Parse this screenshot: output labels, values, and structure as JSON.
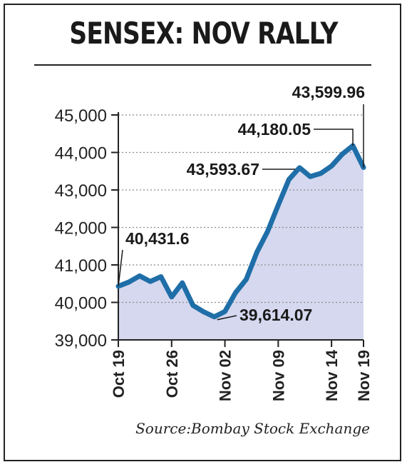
{
  "title": "SENSEX: NOV RALLY",
  "source": "Source:Bombay Stock Exchange",
  "colors": {
    "line": "#1f6ea8",
    "fill": "#d5d8ef",
    "text": "#1a1a1a",
    "grid": "#8a8a8a"
  },
  "chart_data": {
    "type": "area",
    "title": "SENSEX: NOV RALLY",
    "xlabel": "",
    "ylabel": "",
    "ylim": [
      39000,
      45000
    ],
    "grid": true,
    "y_ticks": [
      "45,000",
      "44,000",
      "43,000",
      "42,000",
      "41,000",
      "40,000",
      "39,000"
    ],
    "y_tick_values": [
      45000,
      44000,
      43000,
      42000,
      41000,
      40000,
      39000
    ],
    "x_ticks": [
      "Oct 19",
      "Oct 26",
      "Nov 02",
      "Nov 09",
      "Nov 14",
      "Nov 19"
    ],
    "x": [
      "Oct 19",
      "Oct 20",
      "Oct 21",
      "Oct 22",
      "Oct 23",
      "Oct 26",
      "Oct 27",
      "Oct 28",
      "Oct 29",
      "Oct 30",
      "Nov 02",
      "Nov 03",
      "Nov 04",
      "Nov 05",
      "Nov 06",
      "Nov 09",
      "Nov 10",
      "Nov 11",
      "Nov 12",
      "Nov 13",
      "Nov 14",
      "Nov 17",
      "Nov 18",
      "Nov 19"
    ],
    "series": [
      {
        "values": [
          40431.6,
          40544,
          40707,
          40558,
          40686,
          40146,
          40522,
          39922,
          39750,
          39614.07,
          39758,
          40261,
          40616,
          41340,
          41893,
          42597,
          43278,
          43593.67,
          43357,
          43443,
          43638,
          43953,
          44180.05,
          43599.96
        ]
      }
    ],
    "annotations": [
      {
        "label": "40,431.6",
        "x": "Oct 19",
        "value": 40431.6
      },
      {
        "label": "39,614.07",
        "x": "Oct 30",
        "value": 39614.07
      },
      {
        "label": "43,593.67",
        "x": "Nov 11",
        "value": 43593.67
      },
      {
        "label": "44,180.05",
        "x": "Nov 18",
        "value": 44180.05
      },
      {
        "label": "43,599.96",
        "x": "Nov 19",
        "value": 43599.96
      }
    ]
  }
}
